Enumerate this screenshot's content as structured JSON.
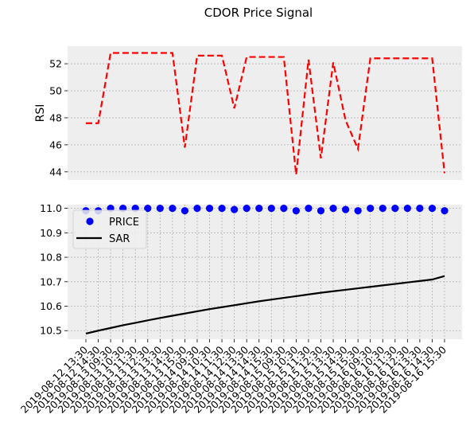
{
  "figure_title": "CDOR Price Signal",
  "colors": {
    "background": "#ffffff",
    "axes_face": "#eeeeee",
    "grid": "#b2b2b2",
    "rsi_line": "#ff0000",
    "price_marker": "#0000ff",
    "sar_line": "#000000"
  },
  "chart_data": [
    {
      "type": "line",
      "xlabel": "",
      "ylabel": "RSI",
      "ylim": [
        43.4,
        53.3
      ],
      "yticks": [
        44,
        46,
        48,
        50,
        52
      ],
      "grid": true,
      "series": [
        {
          "line_style": "dashed",
          "color": "#ff0000",
          "values": [
            47.6,
            47.6,
            52.8,
            52.8,
            52.8,
            52.8,
            52.8,
            52.8,
            45.8,
            52.6,
            52.6,
            52.6,
            48.7,
            52.5,
            52.5,
            52.5,
            52.5,
            43.8,
            52.3,
            45.0,
            52.1,
            47.8,
            45.7,
            52.4,
            52.4,
            52.4,
            52.4,
            52.4,
            52.4,
            43.9
          ]
        }
      ]
    },
    {
      "type": "scatter",
      "xlabel": "",
      "ylabel": "",
      "ylim": [
        10.465,
        11.015
      ],
      "yticks": [
        10.5,
        10.6,
        10.7,
        10.8,
        10.9,
        11.0
      ],
      "ytick_labels": [
        "10.5",
        "10.6",
        "10.7",
        "10.8",
        "10.9",
        "11.0"
      ],
      "grid": true,
      "legend": {
        "placement": "upper-left",
        "entries": [
          "PRICE",
          "SAR"
        ]
      },
      "categories": [
        "2019-08-12 13:30",
        "2019-08-12 14:30",
        "2019-08-13 09:30",
        "2019-08-13 10:30",
        "2019-08-13 11:30",
        "2019-08-13 12:30",
        "2019-08-13 13:30",
        "2019-08-13 14:30",
        "2019-08-13 15:30",
        "2019-08-14 09:30",
        "2019-08-14 10:30",
        "2019-08-14 11:30",
        "2019-08-14 12:30",
        "2019-08-14 13:30",
        "2019-08-14 14:30",
        "2019-08-14 15:30",
        "2019-08-15 09:30",
        "2019-08-15 10:30",
        "2019-08-15 11:30",
        "2019-08-15 12:30",
        "2019-08-15 13:30",
        "2019-08-15 14:30",
        "2019-08-15 15:30",
        "2019-08-16 09:30",
        "2019-08-16 10:30",
        "2019-08-16 11:30",
        "2019-08-16 12:30",
        "2019-08-16 13:30",
        "2019-08-16 14:30",
        "2019-08-16 15:30"
      ],
      "series": [
        {
          "name": "PRICE",
          "marker": "circle",
          "color": "#0000ff",
          "values": [
            10.99,
            10.99,
            11.0,
            11.0,
            11.0,
            11.0,
            11.0,
            11.0,
            10.99,
            11.0,
            11.0,
            11.0,
            10.995,
            11.0,
            11.0,
            11.0,
            11.0,
            10.99,
            11.0,
            10.99,
            11.0,
            10.995,
            10.99,
            11.0,
            11.0,
            11.0,
            11.0,
            11.0,
            11.0,
            10.99
          ]
        },
        {
          "name": "SAR",
          "line_style": "solid",
          "color": "#000000",
          "values": [
            10.488,
            10.5,
            10.511,
            10.522,
            10.532,
            10.542,
            10.552,
            10.561,
            10.57,
            10.579,
            10.588,
            10.596,
            10.604,
            10.612,
            10.62,
            10.627,
            10.634,
            10.641,
            10.648,
            10.655,
            10.661,
            10.667,
            10.673,
            10.679,
            10.685,
            10.691,
            10.697,
            10.703,
            10.709,
            10.723
          ]
        }
      ]
    }
  ]
}
